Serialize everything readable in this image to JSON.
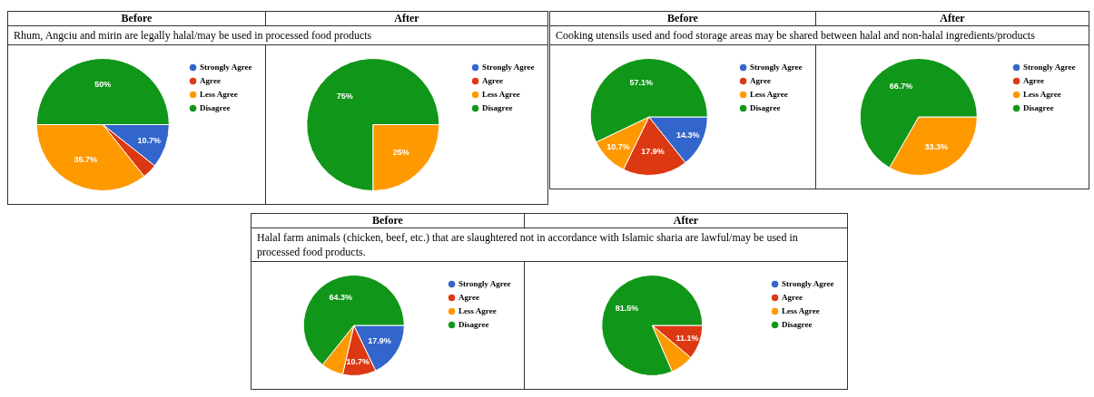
{
  "chart_data": [
    {
      "type": "pie",
      "title": "Before",
      "subtitle": "Rhum, Angciu and mirin are legally halal/may be used in processed food products",
      "categories": [
        "Strongly Agree",
        "Agree",
        "Less Agree",
        "Disagree"
      ],
      "values": [
        10.7,
        3.6,
        35.7,
        50
      ],
      "colors": [
        "#3366cc",
        "#dc3912",
        "#ff9900",
        "#109618"
      ],
      "value_labels": [
        "10.7%",
        null,
        "35.7%",
        "50%"
      ],
      "legend": "right"
    },
    {
      "type": "pie",
      "title": "After",
      "categories": [
        "Strongly Agree",
        "Agree",
        "Less Agree",
        "Disagree"
      ],
      "values": [
        0,
        0,
        25,
        75
      ],
      "colors": [
        "#3366cc",
        "#dc3912",
        "#ff9900",
        "#109618"
      ],
      "value_labels": [
        null,
        null,
        "25%",
        "75%"
      ],
      "legend": "right"
    },
    {
      "type": "pie",
      "title": "Before",
      "subtitle": "Cooking utensils used and food storage areas may be shared between halal and non-halal ingredients/products",
      "categories": [
        "Strongly Agree",
        "Agree",
        "Less Agree",
        "Disagree"
      ],
      "values": [
        14.3,
        17.9,
        10.7,
        57.1
      ],
      "colors": [
        "#3366cc",
        "#dc3912",
        "#ff9900",
        "#109618"
      ],
      "value_labels": [
        "14.3%",
        "17.9%",
        "10.7%",
        "57.1%"
      ],
      "legend": "right"
    },
    {
      "type": "pie",
      "title": "After",
      "categories": [
        "Strongly Agree",
        "Agree",
        "Less Agree",
        "Disagree"
      ],
      "values": [
        0,
        0,
        33.3,
        66.7
      ],
      "colors": [
        "#3366cc",
        "#dc3912",
        "#ff9900",
        "#109618"
      ],
      "value_labels": [
        null,
        null,
        "33.3%",
        "66.7%"
      ],
      "legend": "right"
    },
    {
      "type": "pie",
      "title": "Before",
      "subtitle": "Halal farm animals (chicken, beef, etc.) that are slaughtered not in accordance with Islamic sharia are lawful/may be used in processed food products.",
      "categories": [
        "Strongly Agree",
        "Agree",
        "Less Agree",
        "Disagree"
      ],
      "values": [
        17.9,
        10.7,
        7.1,
        64.3
      ],
      "colors": [
        "#3366cc",
        "#dc3912",
        "#ff9900",
        "#109618"
      ],
      "value_labels": [
        "17.9%",
        "10.7%",
        null,
        "64.3%"
      ],
      "legend": "right"
    },
    {
      "type": "pie",
      "title": "After",
      "categories": [
        "Strongly Agree",
        "Agree",
        "Less Agree",
        "Disagree"
      ],
      "values": [
        0,
        11.1,
        7.4,
        81.5
      ],
      "colors": [
        "#3366cc",
        "#dc3912",
        "#ff9900",
        "#109618"
      ],
      "value_labels": [
        null,
        "11.1%",
        null,
        "81.5%"
      ],
      "legend": "right"
    }
  ]
}
